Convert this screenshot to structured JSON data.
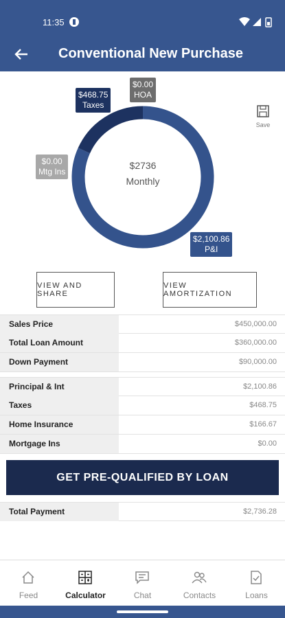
{
  "status_bar": {
    "time": "11:35"
  },
  "header": {
    "title": "Conventional New Purchase"
  },
  "chart": {
    "type": "donut",
    "center_value": "$2736",
    "center_label": "Monthly",
    "categories": [
      "P&I",
      "Mtg Ins",
      "Taxes",
      "HOA"
    ],
    "values": [
      2100.86,
      0,
      468.75,
      0
    ],
    "value_labels": [
      "$2,100.86",
      "$0.00",
      "$468.75",
      "$0.00"
    ],
    "colors": [
      "#34538c",
      "#a8a8a8",
      "#1d3260",
      "#6d6d6d"
    ]
  },
  "save": "Save",
  "buttons": [
    "VIEW AND SHARE",
    "VIEW AMORTIZATION"
  ],
  "tables": [
    [
      [
        "Sales Price",
        "$450,000.00"
      ],
      [
        "Total Loan Amount",
        "$360,000.00"
      ],
      [
        "Down Payment",
        "$90,000.00"
      ]
    ],
    [
      [
        "Principal & Int",
        "$2,100.86"
      ],
      [
        "Taxes",
        "$468.75"
      ],
      [
        "Home Insurance",
        "$166.67"
      ],
      [
        "Mortgage Ins",
        "$0.00"
      ]
    ]
  ],
  "cta": "GET PRE-QUALIFIED BY LOAN",
  "total": [
    "Total Payment",
    "$2,736.28"
  ],
  "nav": [
    "Feed",
    "Calculator",
    "Chat",
    "Contacts",
    "Loans"
  ],
  "nav_active": 1
}
